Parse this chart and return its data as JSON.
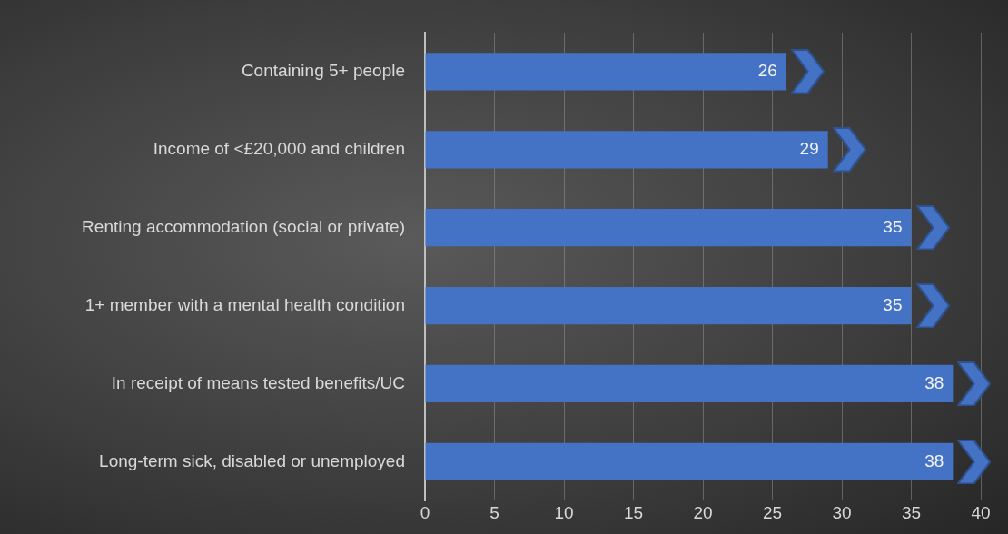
{
  "chart_data": {
    "type": "bar",
    "orientation": "horizontal",
    "categories": [
      "Containing 5+ people",
      "Income of <£20,000 and children",
      "Renting accommodation (social or private)",
      "1+ member with a mental health condition",
      "In receipt of means tested benefits/UC",
      "Long-term sick, disabled or unemployed"
    ],
    "values": [
      26,
      29,
      35,
      35,
      38,
      38
    ],
    "color": "#4472c4",
    "xlim": [
      0,
      40
    ],
    "xticks": [
      0,
      5,
      10,
      15,
      20,
      25,
      30,
      35,
      40
    ],
    "grid": "x",
    "legend": false,
    "data_labels": true
  }
}
